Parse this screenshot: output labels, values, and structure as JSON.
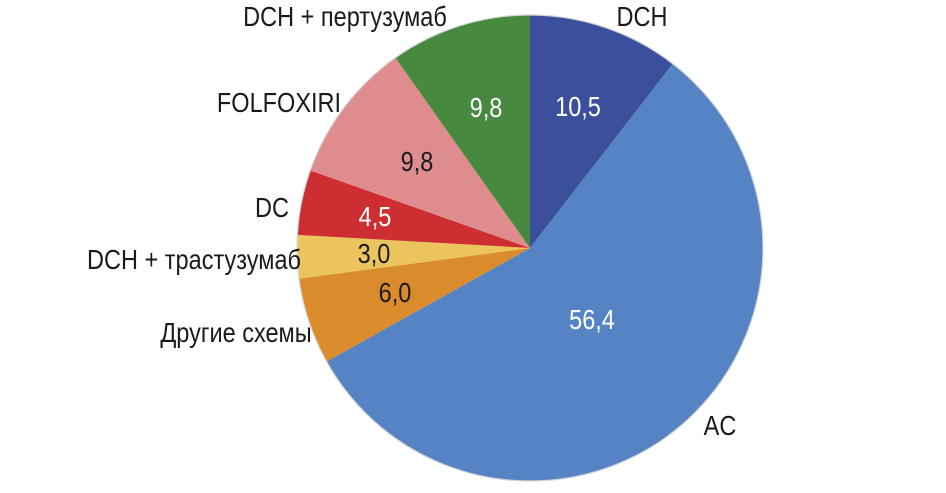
{
  "chart_data": {
    "type": "pie",
    "title": "",
    "unit": "percent",
    "decimal_separator": ",",
    "start_angle_deg": 0,
    "direction": "clockwise",
    "legend": "none",
    "label_position": "outside-category-inside-value",
    "outline_color": "#d4d4d4",
    "category_text_color": "#1a1a1a",
    "slices": [
      {
        "label": "DCH",
        "value": 10.5,
        "display_value": "10,5",
        "color": "#3b4f9c",
        "value_text_color": "#ffffff"
      },
      {
        "label": "AC",
        "value": 56.4,
        "display_value": "56,4",
        "color": "#5583c4",
        "value_text_color": "#ffffff"
      },
      {
        "label": "Другие схемы",
        "value": 6.0,
        "display_value": "6,0",
        "color": "#da8c2d",
        "value_text_color": "#1a1a1a"
      },
      {
        "label": "DCH + трастузумаб",
        "value": 3.0,
        "display_value": "3,0",
        "color": "#ebc45d",
        "value_text_color": "#1a1a1a"
      },
      {
        "label": "DC",
        "value": 4.5,
        "display_value": "4,5",
        "color": "#cc2e31",
        "value_text_color": "#ffffff"
      },
      {
        "label": "FOLFOXIRI",
        "value": 9.8,
        "display_value": "9,8",
        "color": "#de8c8d",
        "value_text_color": "#1a1a1a"
      },
      {
        "label": "DCH + пертузумаб",
        "value": 9.8,
        "display_value": "9,8",
        "color": "#46893f",
        "value_text_color": "#ffffff"
      }
    ]
  }
}
